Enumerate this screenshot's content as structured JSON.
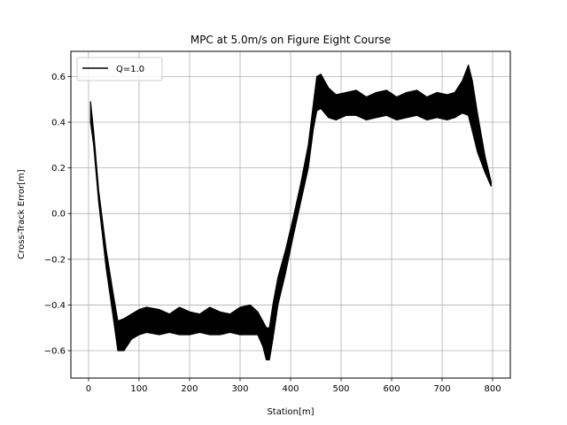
{
  "chart_data": {
    "type": "line",
    "title": "MPC at 5.0m/s on Figure Eight Course",
    "xlabel": "Station[m]",
    "ylabel": "Cross-Track Error[m]",
    "xlim": [
      -35,
      835
    ],
    "ylim": [
      -0.72,
      0.71
    ],
    "xticks": [
      0,
      100,
      200,
      300,
      400,
      500,
      600,
      700,
      800
    ],
    "yticks": [
      -0.6,
      -0.4,
      -0.2,
      0.0,
      0.2,
      0.4,
      0.6
    ],
    "ytick_labels": [
      "−0.6",
      "−0.4",
      "−0.2",
      "0.0",
      "0.2",
      "0.4",
      "0.6"
    ],
    "grid": true,
    "legend_position": "top-left",
    "series": [
      {
        "name": "Q=1.0",
        "color": "#000000",
        "render": "oscillating-band",
        "x": [
          4,
          10,
          20,
          35,
          48,
          58,
          70,
          85,
          100,
          115,
          140,
          160,
          180,
          200,
          220,
          240,
          260,
          280,
          300,
          320,
          335,
          345,
          352,
          358,
          365,
          375,
          390,
          405,
          420,
          435,
          445,
          452,
          460,
          475,
          490,
          510,
          530,
          550,
          570,
          590,
          610,
          630,
          650,
          670,
          690,
          710,
          725,
          740,
          752,
          760,
          770,
          785,
          797
        ],
        "upper": [
          0.49,
          0.36,
          0.1,
          -0.16,
          -0.34,
          -0.47,
          -0.46,
          -0.44,
          -0.42,
          -0.41,
          -0.42,
          -0.44,
          -0.41,
          -0.43,
          -0.44,
          -0.41,
          -0.43,
          -0.44,
          -0.41,
          -0.4,
          -0.43,
          -0.47,
          -0.5,
          -0.5,
          -0.4,
          -0.28,
          -0.16,
          -0.02,
          0.13,
          0.3,
          0.48,
          0.6,
          0.61,
          0.55,
          0.52,
          0.53,
          0.54,
          0.51,
          0.53,
          0.54,
          0.51,
          0.53,
          0.54,
          0.51,
          0.53,
          0.52,
          0.53,
          0.58,
          0.65,
          0.58,
          0.44,
          0.25,
          0.14
        ],
        "lower": [
          0.4,
          0.3,
          0.05,
          -0.24,
          -0.44,
          -0.6,
          -0.6,
          -0.55,
          -0.53,
          -0.52,
          -0.53,
          -0.52,
          -0.53,
          -0.53,
          -0.52,
          -0.53,
          -0.53,
          -0.52,
          -0.53,
          -0.53,
          -0.53,
          -0.58,
          -0.64,
          -0.64,
          -0.55,
          -0.4,
          -0.26,
          -0.1,
          0.05,
          0.2,
          0.37,
          0.45,
          0.46,
          0.42,
          0.41,
          0.43,
          0.43,
          0.41,
          0.42,
          0.43,
          0.41,
          0.42,
          0.43,
          0.41,
          0.42,
          0.41,
          0.42,
          0.44,
          0.43,
          0.36,
          0.27,
          0.18,
          0.12
        ]
      }
    ]
  }
}
